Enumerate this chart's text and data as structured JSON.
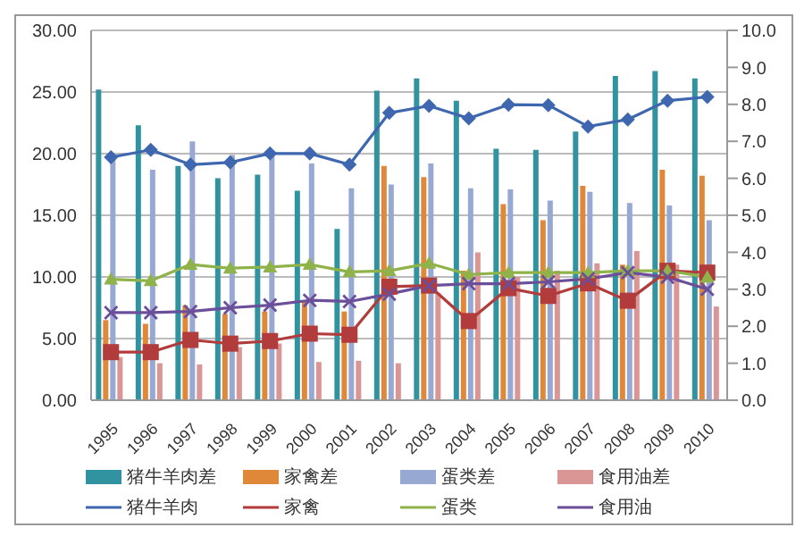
{
  "chart_data": {
    "type": "bar",
    "categories": [
      "1995",
      "1996",
      "1997",
      "1998",
      "1999",
      "2000",
      "2001",
      "2002",
      "2003",
      "2004",
      "2005",
      "2006",
      "2007",
      "2008",
      "2009",
      "2010"
    ],
    "series": [
      {
        "name": "猪牛羊肉差",
        "color": "#31939f",
        "values": [
          25.2,
          22.3,
          19.0,
          18.0,
          18.3,
          17.0,
          13.9,
          25.1,
          26.1,
          24.3,
          20.4,
          20.3,
          21.8,
          26.3,
          26.7,
          26.1
        ]
      },
      {
        "name": "家禽差",
        "color": "#e0883a",
        "values": [
          6.5,
          6.2,
          7.7,
          7.0,
          7.2,
          8.0,
          7.2,
          19.0,
          18.1,
          10.5,
          15.9,
          14.6,
          17.4,
          11.0,
          18.7,
          18.2
        ]
      },
      {
        "name": "蛋类差",
        "color": "#97a9d2",
        "values": [
          19.8,
          18.7,
          21.0,
          19.9,
          19.9,
          19.2,
          17.2,
          17.5,
          19.2,
          17.2,
          17.1,
          16.2,
          16.9,
          16.0,
          15.8,
          14.6
        ]
      },
      {
        "name": "食用油差",
        "color": "#d99694",
        "values": [
          3.5,
          3.0,
          2.9,
          4.3,
          4.6,
          3.1,
          3.2,
          3.0,
          8.7,
          12.0,
          10.0,
          10.5,
          11.1,
          12.1,
          11.0,
          7.6
        ]
      },
      {
        "name": "猪牛羊肉",
        "type": "line",
        "axis": "y2",
        "marker": "diamond",
        "color": "#3f67b0",
        "values": [
          6.57,
          6.77,
          6.37,
          6.43,
          6.67,
          6.67,
          6.37,
          7.77,
          7.96,
          7.62,
          7.99,
          7.98,
          7.4,
          7.59,
          8.1,
          8.2
        ]
      },
      {
        "name": "家禽",
        "type": "line",
        "axis": "y2",
        "marker": "square",
        "color": "#b23b3b",
        "values": [
          1.3,
          1.3,
          1.63,
          1.53,
          1.6,
          1.8,
          1.77,
          3.07,
          3.1,
          2.14,
          3.03,
          2.82,
          3.16,
          2.69,
          3.5,
          3.45
        ]
      },
      {
        "name": "蛋类",
        "type": "line",
        "axis": "y2",
        "marker": "triangle",
        "color": "#8fb34a",
        "values": [
          3.27,
          3.23,
          3.67,
          3.57,
          3.6,
          3.67,
          3.47,
          3.5,
          3.7,
          3.4,
          3.45,
          3.45,
          3.45,
          3.5,
          3.5,
          3.33
        ]
      },
      {
        "name": "食用油",
        "type": "line",
        "axis": "y2",
        "marker": "cross",
        "color": "#6b4f9a",
        "values": [
          2.37,
          2.37,
          2.4,
          2.5,
          2.57,
          2.7,
          2.67,
          2.87,
          3.1,
          3.15,
          3.15,
          3.2,
          3.28,
          3.45,
          3.33,
          3.0
        ]
      }
    ],
    "ylim": [
      0,
      30
    ],
    "yticks": [
      {
        "value": 0,
        "label": "0.00"
      },
      {
        "value": 5,
        "label": "5.00"
      },
      {
        "value": 10,
        "label": "10.00"
      },
      {
        "value": 15,
        "label": "15.00"
      },
      {
        "value": 20,
        "label": "20.00"
      },
      {
        "value": 25,
        "label": "25.00"
      },
      {
        "value": 30,
        "label": "30.00"
      }
    ],
    "y2lim": [
      0,
      10
    ],
    "y2ticks": [
      {
        "value": 0,
        "label": "0.0"
      },
      {
        "value": 1,
        "label": "1.0"
      },
      {
        "value": 2,
        "label": "2.0"
      },
      {
        "value": 3,
        "label": "3.0"
      },
      {
        "value": 4,
        "label": "4.0"
      },
      {
        "value": 5,
        "label": "5.0"
      },
      {
        "value": 6,
        "label": "6.0"
      },
      {
        "value": 7,
        "label": "7.0"
      },
      {
        "value": 8,
        "label": "8.0"
      },
      {
        "value": 9,
        "label": "9.0"
      },
      {
        "value": 10,
        "label": "10.0"
      }
    ],
    "grid": "y",
    "legend": "bottom"
  }
}
